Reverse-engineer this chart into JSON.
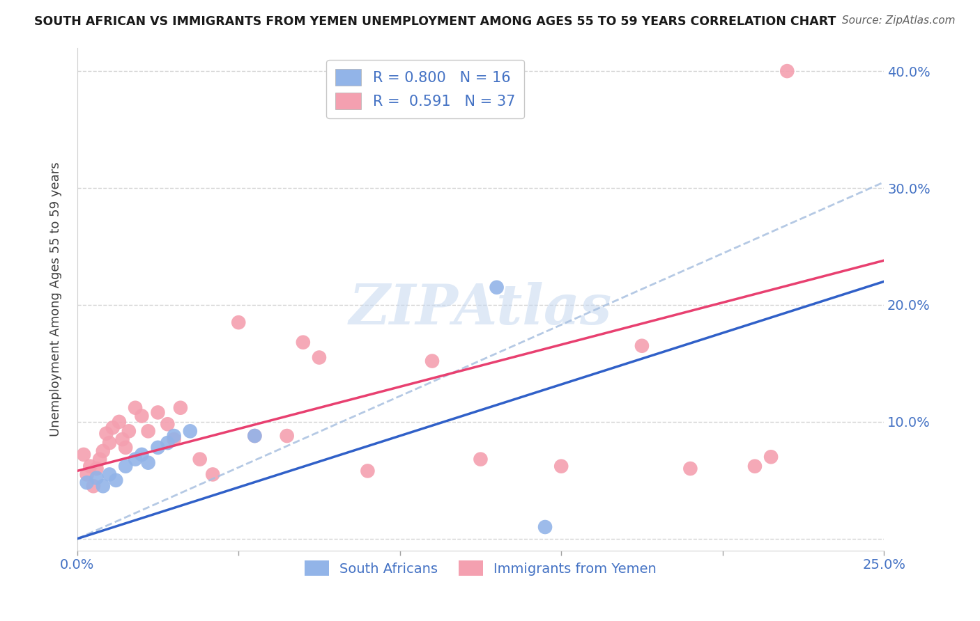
{
  "title": "SOUTH AFRICAN VS IMMIGRANTS FROM YEMEN UNEMPLOYMENT AMONG AGES 55 TO 59 YEARS CORRELATION CHART",
  "source": "Source: ZipAtlas.com",
  "ylabel": "Unemployment Among Ages 55 to 59 years",
  "xlim": [
    0.0,
    0.25
  ],
  "ylim": [
    -0.01,
    0.42
  ],
  "xticks": [
    0.0,
    0.05,
    0.1,
    0.15,
    0.2,
    0.25
  ],
  "yticks": [
    0.0,
    0.1,
    0.2,
    0.3,
    0.4
  ],
  "ytick_labels": [
    "",
    "10.0%",
    "20.0%",
    "30.0%",
    "40.0%"
  ],
  "xtick_labels": [
    "0.0%",
    "",
    "",
    "",
    "",
    "25.0%"
  ],
  "blue_R": 0.8,
  "blue_N": 16,
  "pink_R": 0.591,
  "pink_N": 37,
  "blue_color": "#92b4e8",
  "pink_color": "#f4a0b0",
  "blue_line_color": "#3060c8",
  "pink_line_color": "#e84070",
  "dashed_line_color": "#a8c0e0",
  "watermark": "ZIPAtlas",
  "blue_points_x": [
    0.003,
    0.006,
    0.008,
    0.01,
    0.012,
    0.015,
    0.018,
    0.02,
    0.022,
    0.025,
    0.028,
    0.03,
    0.035,
    0.055,
    0.13,
    0.145
  ],
  "blue_points_y": [
    0.048,
    0.052,
    0.045,
    0.055,
    0.05,
    0.062,
    0.068,
    0.072,
    0.065,
    0.078,
    0.082,
    0.088,
    0.092,
    0.088,
    0.215,
    0.01
  ],
  "pink_points_x": [
    0.002,
    0.003,
    0.004,
    0.005,
    0.006,
    0.007,
    0.008,
    0.009,
    0.01,
    0.011,
    0.013,
    0.014,
    0.015,
    0.016,
    0.018,
    0.02,
    0.022,
    0.025,
    0.028,
    0.03,
    0.032,
    0.038,
    0.042,
    0.05,
    0.055,
    0.065,
    0.07,
    0.075,
    0.09,
    0.11,
    0.125,
    0.15,
    0.175,
    0.19,
    0.21,
    0.215,
    0.22
  ],
  "pink_points_y": [
    0.072,
    0.055,
    0.062,
    0.045,
    0.06,
    0.068,
    0.075,
    0.09,
    0.082,
    0.095,
    0.1,
    0.085,
    0.078,
    0.092,
    0.112,
    0.105,
    0.092,
    0.108,
    0.098,
    0.085,
    0.112,
    0.068,
    0.055,
    0.185,
    0.088,
    0.088,
    0.168,
    0.155,
    0.058,
    0.152,
    0.068,
    0.062,
    0.165,
    0.06,
    0.062,
    0.07,
    0.4
  ],
  "blue_regression_slope": 0.88,
  "blue_regression_intercept": 0.0,
  "pink_regression_slope": 0.72,
  "pink_regression_intercept": 0.058,
  "dashed_slope": 1.22,
  "dashed_intercept": 0.0
}
